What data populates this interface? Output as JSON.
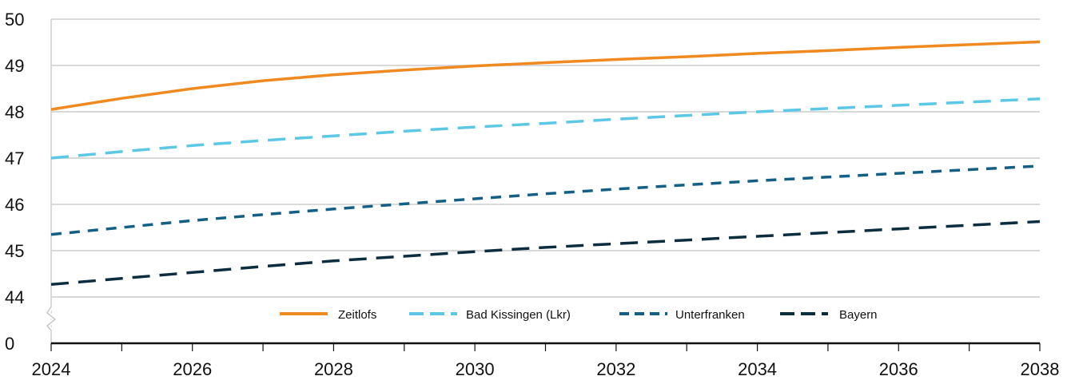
{
  "chart_data": {
    "type": "line",
    "x": [
      2024,
      2025,
      2026,
      2027,
      2028,
      2029,
      2030,
      2031,
      2032,
      2033,
      2034,
      2035,
      2036,
      2037,
      2038
    ],
    "x_ticks": [
      "2024",
      "2026",
      "2028",
      "2030",
      "2032",
      "2034",
      "2036",
      "2038"
    ],
    "y_ticks": [
      "0",
      "44",
      "45",
      "46",
      "47",
      "48",
      "49",
      "50"
    ],
    "ylim": [
      44,
      50
    ],
    "y_axis_break": true,
    "grid": "horizontal",
    "legend_position": "bottom-center",
    "series": [
      {
        "name": "Zeitlofs",
        "color": "#ee8a1f",
        "dash": "solid",
        "values": [
          48.05,
          48.29,
          48.5,
          48.67,
          48.8,
          48.9,
          48.99,
          49.06,
          49.13,
          49.19,
          49.26,
          49.32,
          49.39,
          49.45,
          49.51
        ]
      },
      {
        "name": "Bad Kissingen (Lkr)",
        "color": "#5cc8e6",
        "dash": "long-dash",
        "values": [
          47.0,
          47.14,
          47.27,
          47.38,
          47.48,
          47.58,
          47.67,
          47.75,
          47.84,
          47.92,
          48.0,
          48.07,
          48.14,
          48.21,
          48.28
        ]
      },
      {
        "name": "Unterfranken",
        "color": "#145f85",
        "dash": "short-dash",
        "values": [
          45.35,
          45.5,
          45.65,
          45.78,
          45.9,
          46.01,
          46.12,
          46.23,
          46.33,
          46.42,
          46.51,
          46.59,
          46.67,
          46.75,
          46.83
        ]
      },
      {
        "name": "Bayern",
        "color": "#0c2d3e",
        "dash": "long-dash",
        "values": [
          44.27,
          44.4,
          44.53,
          44.66,
          44.78,
          44.88,
          44.98,
          45.07,
          45.15,
          45.23,
          45.31,
          45.39,
          45.47,
          45.55,
          45.63
        ]
      }
    ]
  }
}
